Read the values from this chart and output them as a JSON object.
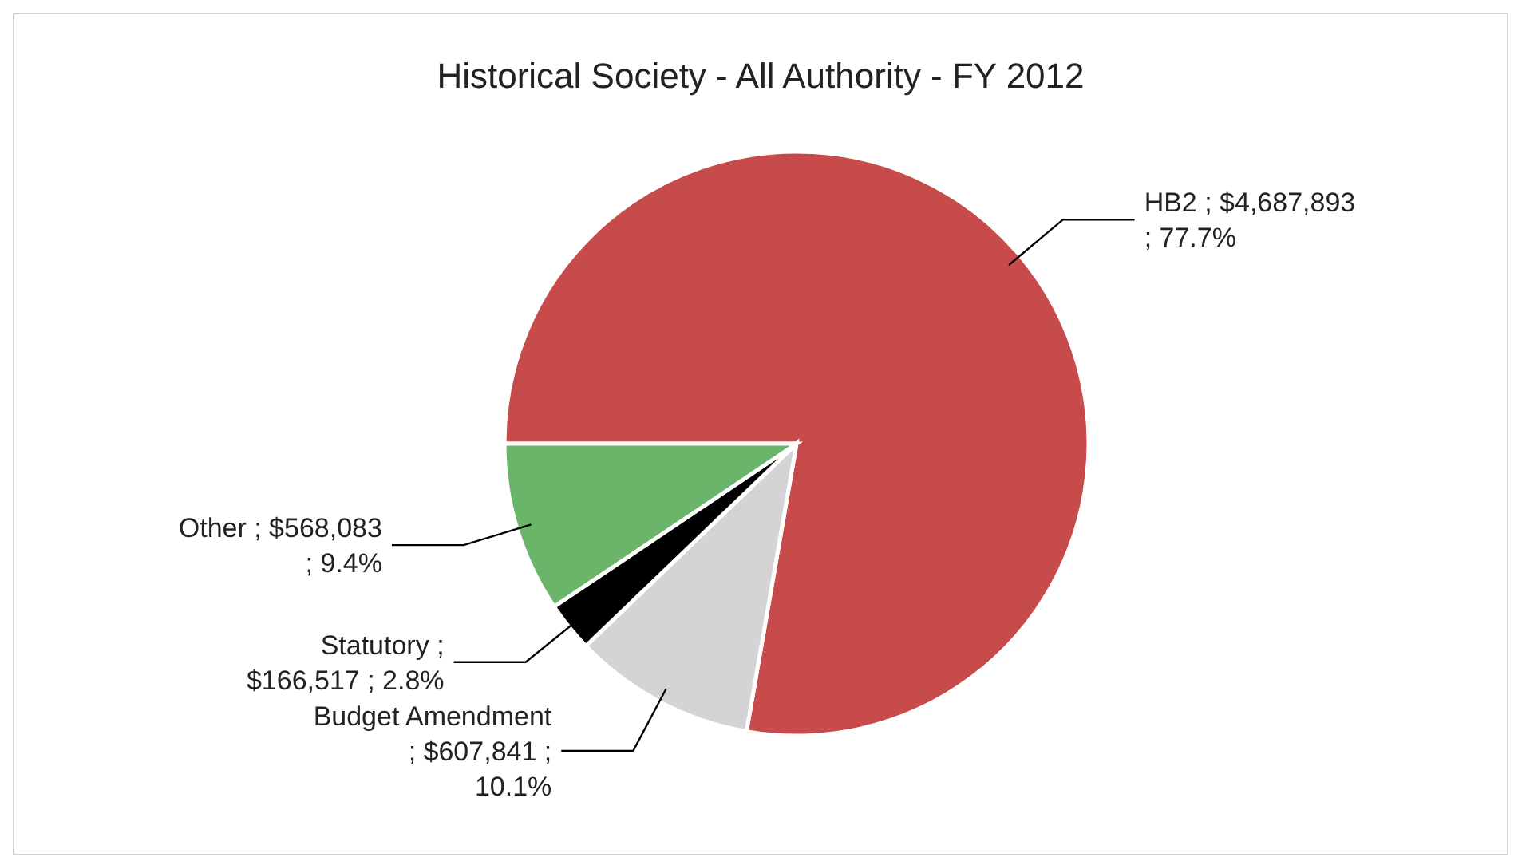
{
  "chart_data": {
    "type": "pie",
    "title": "Historical Society - All Authority  - FY 2012",
    "categories": [
      "HB2",
      "Budget Amendment",
      "Statutory",
      "Other"
    ],
    "values": [
      4687893,
      607841,
      166517,
      568083
    ],
    "colors": [
      "#c84b4b",
      "#d4d4d6",
      "#000000",
      "#6ab56a"
    ],
    "value_labels": [
      "; $4,687,893 ; 77.7%",
      "; $607,841 ; 10.1%",
      "; $166,517 ; 2.8%",
      "; $568,083 ; 9.4%"
    ]
  }
}
